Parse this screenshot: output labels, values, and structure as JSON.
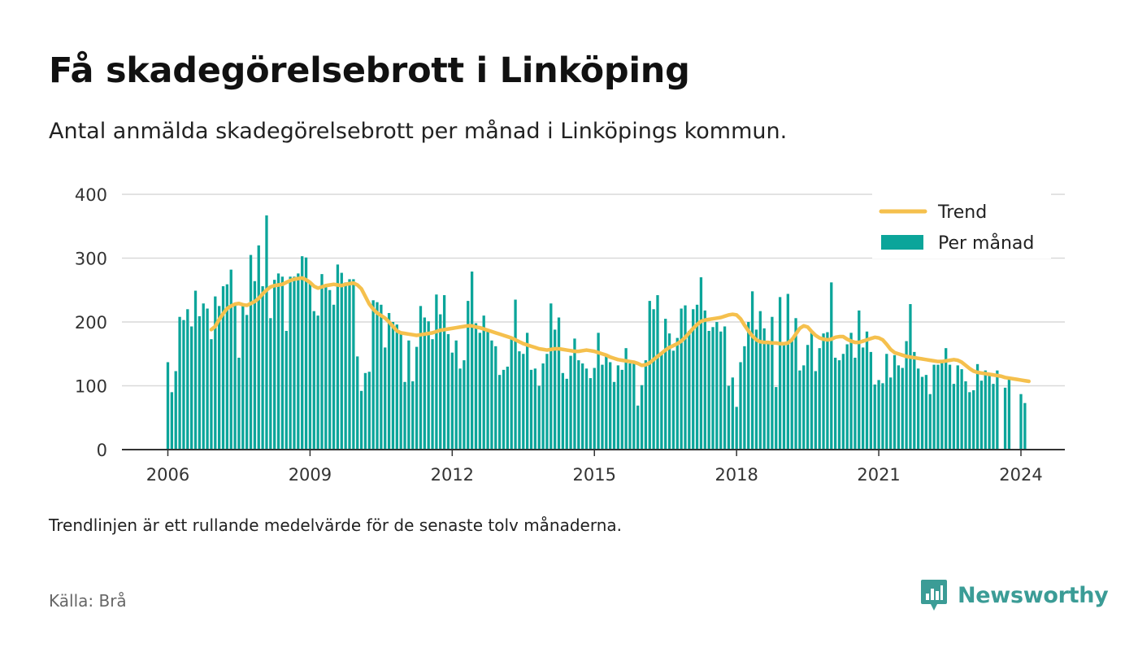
{
  "header": {
    "title": "Få skadegörelsebrott i Linköping",
    "subtitle": "Antal anmälda skadegörelsebrott per månad i Linköpings kommun."
  },
  "footer": {
    "note": "Trendlinjen är ett rullande medelvärde för de senaste tolv månaderna.",
    "source": "Källa: Brå",
    "brand": "Newsworthy"
  },
  "colors": {
    "bars": "#0ba59a",
    "trend": "#f5c04d",
    "brand": "#3b9c96",
    "grid": "#d9d9d9"
  },
  "chart_data": {
    "type": "bar",
    "title": "Få skadegörelsebrott i Linköping",
    "x_start": "2006-01",
    "frequency": "monthly",
    "xticks": [
      "2006",
      "2009",
      "2012",
      "2015",
      "2018",
      "2021",
      "2024"
    ],
    "yticks": [
      0,
      100,
      200,
      300,
      400
    ],
    "ylim": [
      0,
      400
    ],
    "grid": true,
    "legend_position": "top-right",
    "series": [
      {
        "name": "Per månad",
        "type": "bar",
        "values": [
          137,
          90,
          123,
          208,
          203,
          220,
          193,
          249,
          209,
          229,
          221,
          173,
          240,
          225,
          256,
          259,
          282,
          227,
          144,
          227,
          211,
          305,
          264,
          320,
          256,
          367,
          206,
          266,
          276,
          271,
          186,
          271,
          271,
          276,
          303,
          301,
          260,
          217,
          210,
          275,
          257,
          250,
          227,
          290,
          277,
          262,
          267,
          267,
          146,
          92,
          120,
          122,
          234,
          231,
          227,
          160,
          214,
          200,
          196,
          183,
          106,
          171,
          107,
          161,
          225,
          207,
          201,
          173,
          243,
          212,
          242,
          181,
          152,
          171,
          127,
          140,
          233,
          279,
          198,
          183,
          210,
          186,
          171,
          162,
          117,
          125,
          130,
          173,
          235,
          154,
          150,
          183,
          125,
          127,
          100,
          135,
          150,
          229,
          188,
          207,
          120,
          111,
          147,
          174,
          140,
          135,
          127,
          112,
          128,
          183,
          133,
          148,
          137,
          106,
          132,
          125,
          159,
          135,
          138,
          69,
          101,
          140,
          233,
          220,
          242,
          151,
          205,
          182,
          155,
          175,
          221,
          226,
          186,
          220,
          227,
          270,
          218,
          186,
          192,
          200,
          185,
          193,
          100,
          113,
          67,
          137,
          162,
          200,
          248,
          188,
          217,
          190,
          170,
          208,
          98,
          239,
          165,
          244,
          175,
          206,
          124,
          132,
          164,
          186,
          123,
          159,
          182,
          184,
          262,
          144,
          140,
          150,
          165,
          183,
          144,
          218,
          160,
          185,
          153,
          102,
          109,
          104,
          150,
          113,
          148,
          132,
          128,
          170,
          228,
          153,
          127,
          114,
          117,
          87,
          133,
          133,
          137,
          159,
          133,
          103,
          132,
          126,
          107,
          90,
          93,
          134,
          108,
          124,
          117,
          103,
          124,
          0,
          97,
          114,
          0,
          0,
          87,
          73
        ]
      },
      {
        "name": "Trend",
        "type": "line",
        "start_index": 11,
        "values": [
          188,
          193,
          204,
          213,
          221,
          225,
          228,
          229,
          227,
          226,
          229,
          232,
          237,
          244,
          250,
          255,
          257,
          258,
          259,
          262,
          265,
          267,
          268,
          269,
          266,
          262,
          256,
          253,
          255,
          257,
          258,
          259,
          258,
          257,
          259,
          260,
          261,
          258,
          252,
          240,
          228,
          220,
          214,
          210,
          206,
          200,
          193,
          186,
          183,
          182,
          181,
          180,
          179,
          180,
          181,
          182,
          183,
          185,
          187,
          188,
          189,
          190,
          191,
          192,
          193,
          194,
          194,
          192,
          191,
          189,
          187,
          185,
          183,
          181,
          179,
          177,
          175,
          172,
          169,
          166,
          164,
          162,
          160,
          158,
          157,
          156,
          157,
          158,
          158,
          157,
          156,
          155,
          154,
          154,
          155,
          156,
          155,
          154,
          152,
          150,
          148,
          145,
          143,
          141,
          140,
          139,
          138,
          137,
          135,
          132,
          133,
          136,
          141,
          146,
          151,
          156,
          160,
          163,
          166,
          170,
          176,
          183,
          190,
          196,
          201,
          203,
          204,
          205,
          206,
          207,
          209,
          211,
          212,
          211,
          205,
          195,
          186,
          178,
          172,
          169,
          168,
          168,
          167,
          167,
          166,
          166,
          167,
          172,
          181,
          190,
          194,
          192,
          185,
          179,
          175,
          173,
          172,
          173,
          176,
          177,
          177,
          173,
          170,
          168,
          168,
          170,
          172,
          174,
          176,
          175,
          172,
          165,
          157,
          152,
          150,
          148,
          146,
          145,
          144,
          143,
          142,
          141,
          140,
          139,
          138,
          138,
          139,
          140,
          141,
          140,
          137,
          132,
          127,
          123,
          121,
          120,
          119,
          118,
          117,
          116,
          115,
          113,
          112,
          111,
          110,
          109,
          108,
          107
        ]
      }
    ]
  }
}
